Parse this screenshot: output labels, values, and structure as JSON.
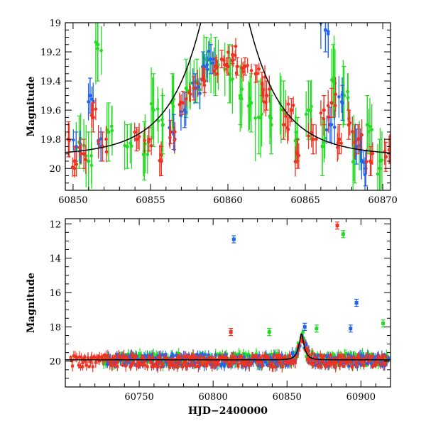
{
  "chart_data": [
    {
      "type": "scatter",
      "panel": "top",
      "title": "",
      "xlabel": "",
      "ylabel": "Magnitude",
      "xlim": [
        60849.5,
        60870.5
      ],
      "ylim": [
        20.15,
        19.0
      ],
      "y_inverted": true,
      "xticks": [
        60850,
        60855,
        60860,
        60865,
        60870
      ],
      "yticks": [
        19,
        19.2,
        19.4,
        19.6,
        19.8,
        20
      ],
      "yticks_labels": [
        "19",
        "19.2",
        "19.4",
        "19.6",
        "19.8",
        "20"
      ],
      "xticks_labels": [
        "60850",
        "60855",
        "60860",
        "60865",
        "60870"
      ],
      "model_curve": {
        "color": "#000000",
        "t0": 60859.8,
        "u0": 0.25,
        "tE": 4.0,
        "baseline": 19.92
      },
      "series": [
        {
          "color": "#22dd22",
          "points": [
            [
              60850.4,
              19.82,
              0.18
            ],
            [
              60851.0,
              19.95,
              0.2
            ],
            [
              60851.6,
              19.15,
              0.25
            ],
            [
              60852.3,
              19.75,
              0.2
            ],
            [
              60853.5,
              19.85,
              0.15
            ],
            [
              60854.6,
              19.88,
              0.2
            ],
            [
              60855.2,
              19.6,
              0.25
            ],
            [
              60855.8,
              19.7,
              0.2
            ],
            [
              60856.4,
              19.55,
              0.2
            ],
            [
              60857.3,
              19.45,
              0.2
            ],
            [
              60858.0,
              19.4,
              0.15
            ],
            [
              60858.6,
              19.25,
              0.15
            ],
            [
              60859.2,
              19.3,
              0.2
            ],
            [
              60860.1,
              19.35,
              0.2
            ],
            [
              60860.8,
              19.5,
              0.2
            ],
            [
              60861.5,
              19.55,
              0.2
            ],
            [
              60862.0,
              19.65,
              0.25
            ],
            [
              60862.8,
              19.7,
              0.2
            ],
            [
              60863.6,
              19.6,
              0.2
            ],
            [
              60864.5,
              19.8,
              0.15
            ],
            [
              60865.2,
              19.6,
              0.2
            ],
            [
              60866.1,
              19.85,
              0.2
            ],
            [
              60866.8,
              19.4,
              0.25
            ],
            [
              60867.5,
              19.5,
              0.2
            ],
            [
              60868.2,
              19.9,
              0.2
            ],
            [
              60869.0,
              19.7,
              0.2
            ],
            [
              60869.8,
              20.0,
              0.2
            ]
          ]
        },
        {
          "color": "#2266ee",
          "points": [
            [
              60850.2,
              19.85,
              0.1
            ],
            [
              60851.1,
              19.5,
              0.12
            ],
            [
              60851.8,
              19.85,
              0.1
            ],
            [
              60856.5,
              19.75,
              0.12
            ],
            [
              60857.2,
              19.6,
              0.12
            ],
            [
              60857.9,
              19.45,
              0.1
            ],
            [
              60858.4,
              19.3,
              0.1
            ],
            [
              60858.9,
              19.25,
              0.1
            ],
            [
              60866.3,
              19.05,
              0.15
            ],
            [
              60866.6,
              19.7,
              0.12
            ],
            [
              60867.4,
              19.55,
              0.12
            ],
            [
              60868.3,
              19.85,
              0.12
            ],
            [
              60868.9,
              20.0,
              0.12
            ]
          ]
        },
        {
          "color": "#ee3322",
          "points": [
            [
              60849.7,
              19.8,
              0.12
            ],
            [
              60850.1,
              19.95,
              0.1
            ],
            [
              60850.7,
              19.9,
              0.1
            ],
            [
              60851.3,
              19.65,
              0.1
            ],
            [
              60851.9,
              19.85,
              0.1
            ],
            [
              60854.1,
              19.8,
              0.08
            ],
            [
              60854.9,
              19.8,
              0.08
            ],
            [
              60855.7,
              19.95,
              0.1
            ],
            [
              60856.3,
              19.75,
              0.08
            ],
            [
              60857.1,
              19.55,
              0.08
            ],
            [
              60857.8,
              19.45,
              0.08
            ],
            [
              60858.5,
              19.4,
              0.08
            ],
            [
              60859.2,
              19.3,
              0.06
            ],
            [
              60859.6,
              19.25,
              0.06
            ],
            [
              60860.0,
              19.3,
              0.06
            ],
            [
              60860.3,
              19.22,
              0.06
            ],
            [
              60860.6,
              19.3,
              0.06
            ],
            [
              60861.1,
              19.3,
              0.06
            ],
            [
              60861.8,
              19.35,
              0.06
            ],
            [
              60862.2,
              19.42,
              0.08
            ],
            [
              60862.5,
              19.5,
              0.1
            ],
            [
              60863.6,
              19.7,
              0.1
            ],
            [
              60864.1,
              19.6,
              0.08
            ],
            [
              60864.5,
              19.9,
              0.1
            ],
            [
              60865.5,
              19.8,
              0.1
            ],
            [
              60866.2,
              19.6,
              0.1
            ],
            [
              60866.7,
              19.55,
              0.1
            ],
            [
              60867.2,
              19.8,
              0.1
            ],
            [
              60867.8,
              19.7,
              0.1
            ],
            [
              60868.4,
              19.8,
              0.1
            ],
            [
              60869.2,
              19.95,
              0.1
            ],
            [
              60870.2,
              19.92,
              0.1
            ]
          ]
        }
      ]
    },
    {
      "type": "scatter",
      "panel": "bottom",
      "title": "",
      "xlabel": "HJD−2400000",
      "ylabel": "Magnitude",
      "xlim": [
        60700,
        60920
      ],
      "ylim": [
        21.5,
        11.7
      ],
      "y_inverted": true,
      "xticks": [
        60750,
        60800,
        60850,
        60900
      ],
      "xticks_labels": [
        "60750",
        "60800",
        "60850",
        "60900"
      ],
      "yticks": [
        12,
        14,
        16,
        18,
        20
      ],
      "yticks_labels": [
        "12",
        "14",
        "16",
        "18",
        "20"
      ],
      "model_curve": {
        "color": "#000000",
        "t0": 60859.8,
        "u0": 0.25,
        "tE": 4.0,
        "baseline": 19.92
      },
      "outliers": [
        {
          "color": "#2266ee",
          "x": 60814,
          "y": 12.9
        },
        {
          "color": "#ee3322",
          "x": 60884,
          "y": 12.1
        },
        {
          "color": "#22dd22",
          "x": 60888,
          "y": 12.6
        },
        {
          "color": "#2266ee",
          "x": 60897,
          "y": 16.6
        },
        {
          "color": "#22dd22",
          "x": 60915,
          "y": 17.8
        },
        {
          "color": "#2266ee",
          "x": 60893,
          "y": 18.1
        },
        {
          "color": "#22dd22",
          "x": 60838,
          "y": 18.3
        },
        {
          "color": "#2266ee",
          "x": 60862,
          "y": 18.0
        },
        {
          "color": "#22dd22",
          "x": 60870,
          "y": 18.1
        },
        {
          "color": "#ee3322",
          "x": 60812,
          "y": 18.3
        }
      ],
      "series": [
        {
          "color": "#22dd22",
          "x_range": [
            60725,
            60918
          ],
          "base": 19.9
        },
        {
          "color": "#2266ee",
          "x_range": [
            60728,
            60918
          ],
          "base": 19.95
        },
        {
          "color": "#ee3322",
          "x_range": [
            60703,
            60918
          ],
          "base": 20.0
        }
      ]
    }
  ]
}
